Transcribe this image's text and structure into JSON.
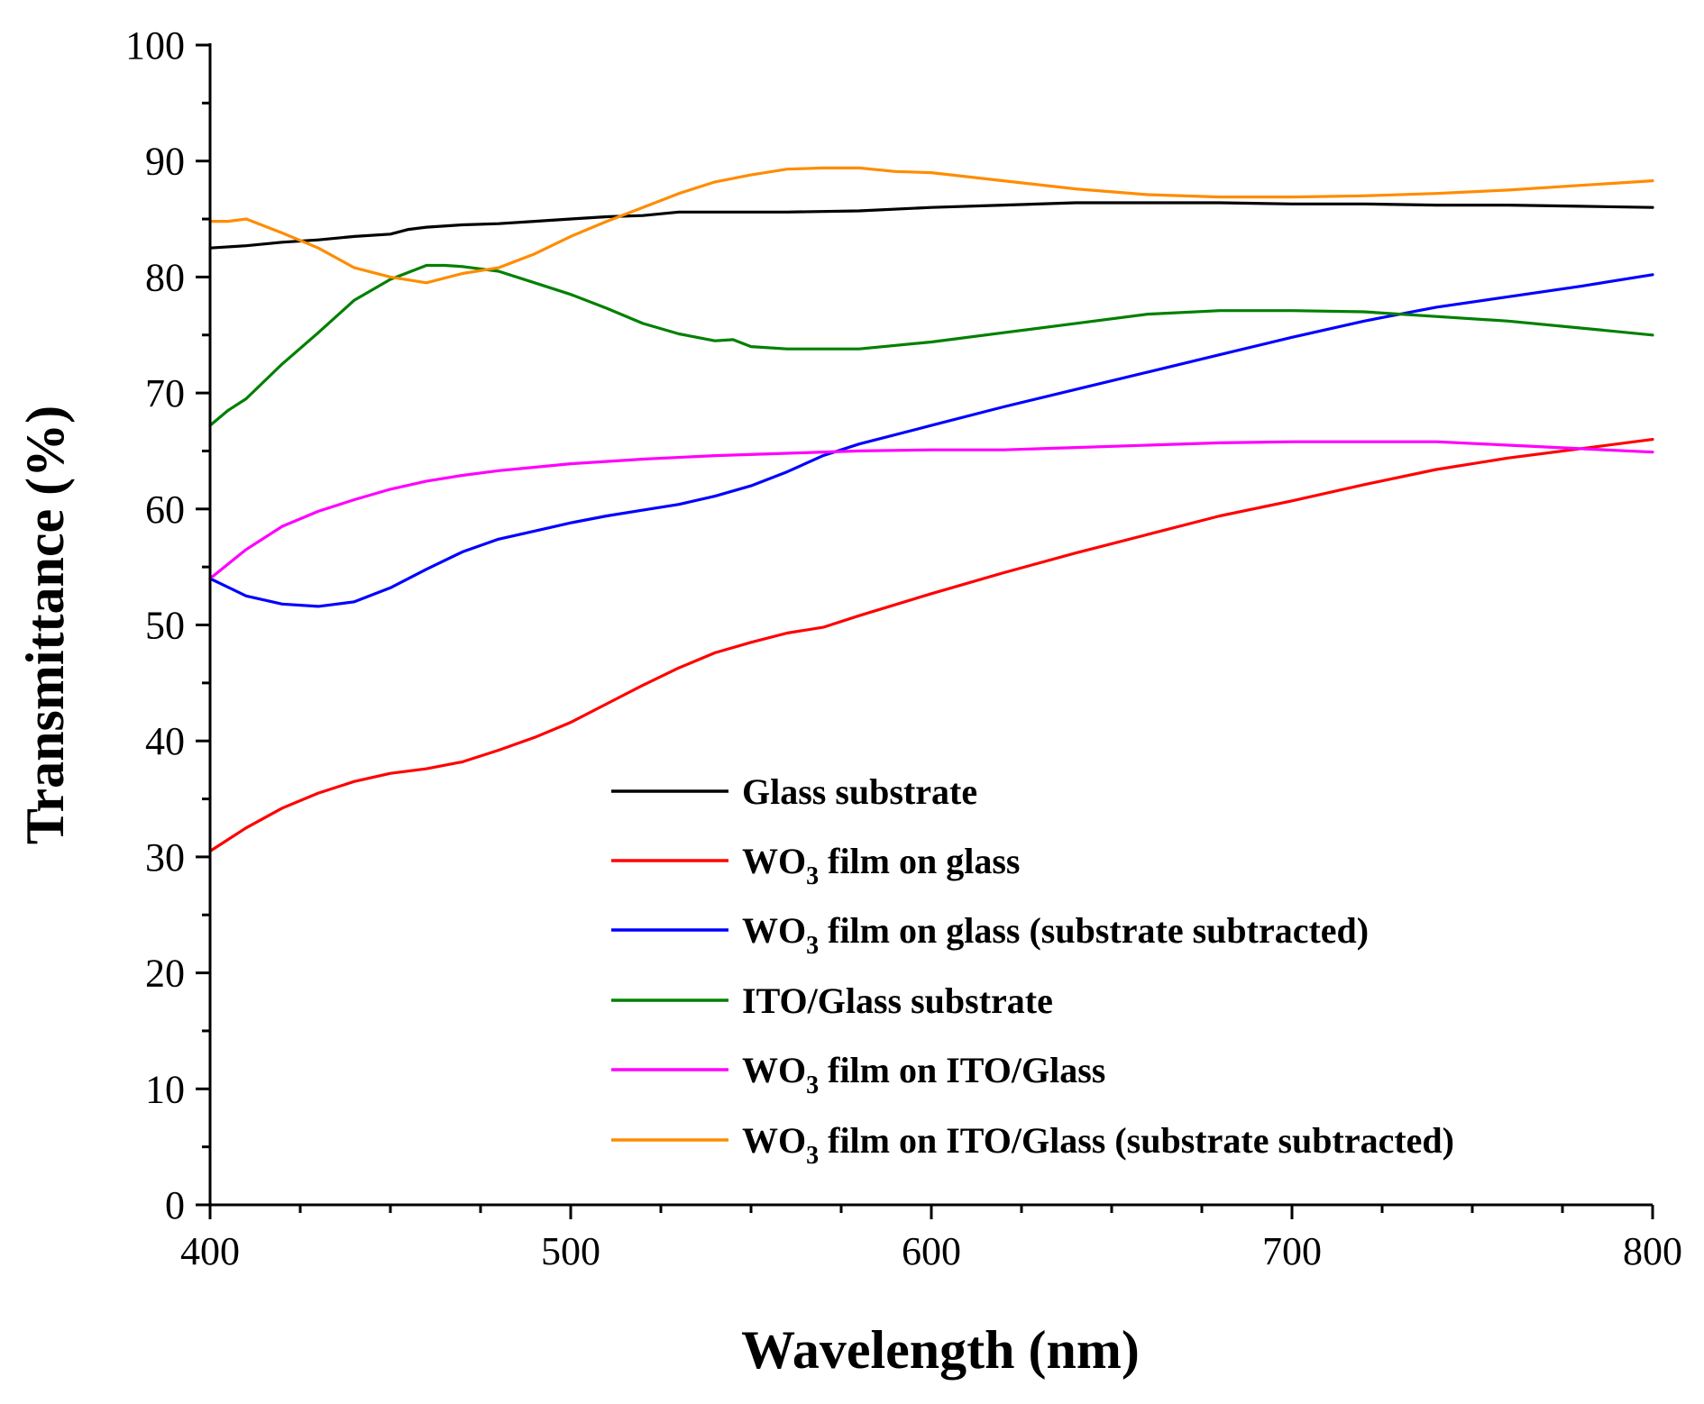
{
  "chart_data": {
    "type": "line",
    "xlabel": "Wavelength (nm)",
    "ylabel": "Transmittance (%)",
    "xlim": [
      400,
      800
    ],
    "ylim": [
      0,
      100
    ],
    "xticks": [
      400,
      500,
      600,
      700,
      800
    ],
    "yticks": [
      0,
      10,
      20,
      30,
      40,
      50,
      60,
      70,
      80,
      90,
      100
    ],
    "legend_position": "bottom-right",
    "series": [
      {
        "name": "Glass substrate",
        "label_main": "Glass substrate",
        "color": "#000000",
        "x": [
          400,
          410,
          420,
          430,
          440,
          450,
          455,
          460,
          470,
          480,
          490,
          500,
          510,
          520,
          530,
          540,
          560,
          580,
          600,
          620,
          640,
          660,
          680,
          700,
          720,
          740,
          760,
          780,
          800
        ],
        "y": [
          82.5,
          82.7,
          83.0,
          83.2,
          83.5,
          83.7,
          84.1,
          84.3,
          84.5,
          84.6,
          84.8,
          85.0,
          85.2,
          85.3,
          85.6,
          85.6,
          85.6,
          85.7,
          86.0,
          86.2,
          86.4,
          86.4,
          86.4,
          86.3,
          86.3,
          86.2,
          86.2,
          86.1,
          86.0
        ]
      },
      {
        "name": "WO3 film on glass",
        "label_main": "WO",
        "label_sub": "3",
        "label_rest": " film on glass",
        "color": "#ff0000",
        "x": [
          400,
          410,
          420,
          430,
          440,
          450,
          460,
          470,
          480,
          490,
          500,
          510,
          520,
          530,
          540,
          550,
          560,
          570,
          580,
          600,
          620,
          640,
          660,
          680,
          700,
          720,
          740,
          760,
          780,
          800
        ],
        "y": [
          30.5,
          32.5,
          34.2,
          35.5,
          36.5,
          37.2,
          37.6,
          38.2,
          39.2,
          40.3,
          41.6,
          43.2,
          44.8,
          46.3,
          47.6,
          48.5,
          49.3,
          49.8,
          50.8,
          52.7,
          54.5,
          56.2,
          57.8,
          59.4,
          60.7,
          62.1,
          63.4,
          64.4,
          65.2,
          66.0
        ]
      },
      {
        "name": "WO3 film on glass (substrate subtracted)",
        "label_main": "WO",
        "label_sub": "3",
        "label_rest": " film on glass (substrate subtracted)",
        "color": "#0000ff",
        "x": [
          400,
          410,
          420,
          430,
          440,
          450,
          460,
          470,
          480,
          490,
          500,
          510,
          520,
          530,
          540,
          550,
          560,
          570,
          580,
          600,
          620,
          640,
          660,
          680,
          700,
          720,
          740,
          760,
          780,
          800
        ],
        "y": [
          54.0,
          52.5,
          51.8,
          51.6,
          52.0,
          53.2,
          54.8,
          56.3,
          57.4,
          58.1,
          58.8,
          59.4,
          59.9,
          60.4,
          61.1,
          62.0,
          63.2,
          64.6,
          65.6,
          67.2,
          68.8,
          70.3,
          71.8,
          73.3,
          74.8,
          76.2,
          77.4,
          78.3,
          79.2,
          80.2
        ]
      },
      {
        "name": "ITO/Glass substrate",
        "label_main": "ITO/Glass substrate",
        "color": "#008000",
        "x": [
          400,
          405,
          410,
          420,
          430,
          440,
          450,
          460,
          465,
          470,
          480,
          490,
          500,
          510,
          520,
          530,
          540,
          545,
          550,
          560,
          570,
          580,
          600,
          620,
          640,
          660,
          680,
          700,
          720,
          740,
          760,
          780,
          800
        ],
        "y": [
          67.2,
          68.5,
          69.5,
          72.5,
          75.2,
          78.0,
          79.8,
          81.0,
          81.0,
          80.9,
          80.5,
          79.5,
          78.5,
          77.3,
          76.0,
          75.1,
          74.5,
          74.6,
          74.0,
          73.8,
          73.8,
          73.8,
          74.4,
          75.2,
          76.0,
          76.8,
          77.1,
          77.1,
          77.0,
          76.6,
          76.2,
          75.6,
          75.0
        ]
      },
      {
        "name": "WO3 film on ITO/Glass",
        "label_main": "WO",
        "label_sub": "3",
        "label_rest": " film on ITO/Glass",
        "color": "#ff00ff",
        "x": [
          400,
          410,
          420,
          430,
          440,
          450,
          460,
          470,
          480,
          490,
          500,
          520,
          540,
          560,
          580,
          600,
          620,
          640,
          660,
          680,
          700,
          720,
          740,
          760,
          780,
          800
        ],
        "y": [
          54.0,
          56.5,
          58.5,
          59.8,
          60.8,
          61.7,
          62.4,
          62.9,
          63.3,
          63.6,
          63.9,
          64.3,
          64.6,
          64.8,
          65.0,
          65.1,
          65.1,
          65.3,
          65.5,
          65.7,
          65.8,
          65.8,
          65.8,
          65.5,
          65.2,
          64.9
        ]
      },
      {
        "name": "WO3 film on ITO/Glass (substrate subtracted)",
        "label_main": "WO",
        "label_sub": "3",
        "label_rest": " film on ITO/Glass (substrate subtracted)",
        "color": "#ff8c00",
        "x": [
          400,
          405,
          410,
          420,
          430,
          440,
          450,
          460,
          470,
          480,
          490,
          500,
          510,
          520,
          530,
          540,
          550,
          560,
          570,
          580,
          590,
          600,
          620,
          640,
          660,
          680,
          700,
          720,
          740,
          760,
          780,
          800
        ],
        "y": [
          84.8,
          84.8,
          85.0,
          83.8,
          82.5,
          80.8,
          80.0,
          79.5,
          80.3,
          80.8,
          82.0,
          83.5,
          84.8,
          86.0,
          87.2,
          88.2,
          88.8,
          89.3,
          89.4,
          89.4,
          89.1,
          89.0,
          88.3,
          87.6,
          87.1,
          86.9,
          86.9,
          87.0,
          87.2,
          87.5,
          87.9,
          88.3
        ]
      }
    ]
  }
}
